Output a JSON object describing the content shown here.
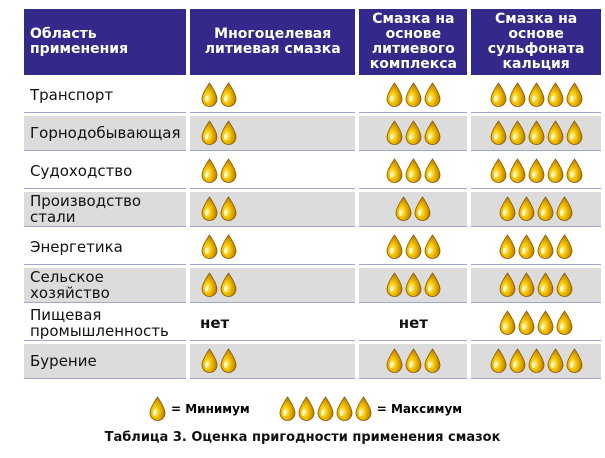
{
  "header": [
    "Область применения",
    "Многоцелевая литиевая смазка",
    "Смазка на основе литиевого комплекса",
    "Смазка на основе сульфоната кальция"
  ],
  "rows": [
    {
      "label": "Транспорт",
      "values": [
        2,
        3,
        5
      ]
    },
    {
      "label": "Горнодобывающая",
      "values": [
        2,
        3,
        5
      ]
    },
    {
      "label": "Судоходство",
      "values": [
        2,
        3,
        5
      ]
    },
    {
      "label": "Производство стали",
      "values": [
        2,
        2,
        4
      ]
    },
    {
      "label": "Энергетика",
      "values": [
        2,
        3,
        4
      ]
    },
    {
      "label": "Сельское хозяйство",
      "values": [
        2,
        3,
        4
      ]
    },
    {
      "label": "Пищевая промышленность",
      "values": [
        "нет",
        "нет",
        4
      ]
    },
    {
      "label": "Бурение",
      "values": [
        2,
        3,
        5
      ]
    }
  ],
  "legend": [
    {
      "count": 1,
      "label": "= Минимум"
    },
    {
      "count": 5,
      "label": "= Максимум"
    }
  ],
  "caption": "Таблица 3.  Оценка пригодности применения смазок"
}
